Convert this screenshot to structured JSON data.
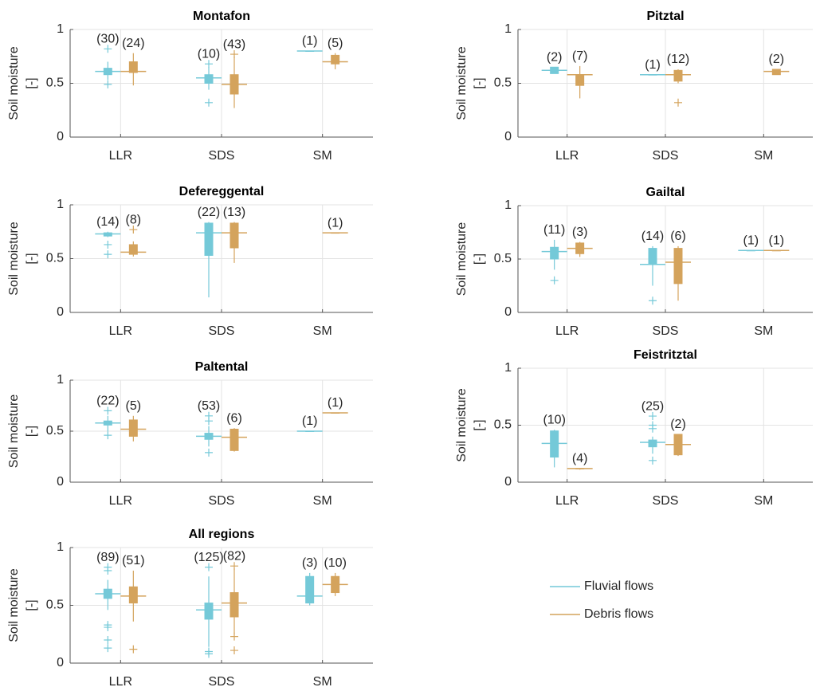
{
  "chart_data": [
    {
      "type": "box",
      "title": "Montafon",
      "ylabel": [
        "Soil moisture",
        "[-]"
      ],
      "categories": [
        "LLR",
        "SDS",
        "SM"
      ],
      "ylim": [
        0,
        1
      ],
      "yticks": [
        0,
        0.5,
        1
      ],
      "grid": true,
      "series": [
        {
          "name": "Fluvial flows",
          "color": "#74c9d8",
          "boxes": [
            {
              "min": 0.53,
              "q1": 0.58,
              "median": 0.61,
              "q3": 0.64,
              "max": 0.7,
              "outliers": [
                0.49,
                0.82
              ],
              "n": 30,
              "n_label": "(30)"
            },
            {
              "min": 0.44,
              "q1": 0.5,
              "median": 0.55,
              "q3": 0.58,
              "max": 0.65,
              "outliers": [
                0.32,
                0.68
              ],
              "n": 10,
              "n_label": "(10)"
            },
            {
              "min": 0.8,
              "q1": 0.8,
              "median": 0.8,
              "q3": 0.8,
              "max": 0.8,
              "outliers": [],
              "n": 1,
              "n_label": "(1)"
            }
          ]
        },
        {
          "name": "Debris flows",
          "color": "#d4a35c",
          "boxes": [
            {
              "min": 0.48,
              "q1": 0.6,
              "median": 0.61,
              "q3": 0.7,
              "max": 0.78,
              "outliers": [],
              "n": 24,
              "n_label": "(24)"
            },
            {
              "min": 0.27,
              "q1": 0.4,
              "median": 0.49,
              "q3": 0.58,
              "max": 0.75,
              "outliers": [
                0.77
              ],
              "n": 43,
              "n_label": "(43)"
            },
            {
              "min": 0.63,
              "q1": 0.68,
              "median": 0.7,
              "q3": 0.76,
              "max": 0.78,
              "outliers": [],
              "n": 5,
              "n_label": "(5)"
            }
          ]
        }
      ]
    },
    {
      "type": "box",
      "title": "Pitztal",
      "ylabel": [
        "Soil moisture",
        "[-]"
      ],
      "categories": [
        "LLR",
        "SDS",
        "SM"
      ],
      "ylim": [
        0,
        1
      ],
      "yticks": [
        0,
        0.5,
        1
      ],
      "grid": true,
      "series": [
        {
          "name": "Fluvial flows",
          "color": "#74c9d8",
          "boxes": [
            {
              "min": 0.59,
              "q1": 0.59,
              "median": 0.62,
              "q3": 0.65,
              "max": 0.65,
              "outliers": [],
              "n": 2,
              "n_label": "(2)"
            },
            {
              "min": 0.58,
              "q1": 0.58,
              "median": 0.58,
              "q3": 0.58,
              "max": 0.58,
              "outliers": [],
              "n": 1,
              "n_label": "(1)"
            },
            null
          ]
        },
        {
          "name": "Debris flows",
          "color": "#d4a35c",
          "boxes": [
            {
              "min": 0.36,
              "q1": 0.48,
              "median": 0.58,
              "q3": 0.58,
              "max": 0.66,
              "outliers": [],
              "n": 7,
              "n_label": "(7)"
            },
            {
              "min": 0.5,
              "q1": 0.52,
              "median": 0.58,
              "q3": 0.62,
              "max": 0.63,
              "outliers": [
                0.32
              ],
              "n": 12,
              "n_label": "(12)"
            },
            {
              "min": 0.58,
              "q1": 0.58,
              "median": 0.61,
              "q3": 0.63,
              "max": 0.63,
              "outliers": [],
              "n": 2,
              "n_label": "(2)"
            }
          ]
        }
      ]
    },
    {
      "type": "box",
      "title": "Defereggental",
      "ylabel": [
        "Soil moisture",
        "[-]"
      ],
      "categories": [
        "LLR",
        "SDS",
        "SM"
      ],
      "ylim": [
        0,
        1
      ],
      "yticks": [
        0,
        0.5,
        1
      ],
      "grid": true,
      "series": [
        {
          "name": "Fluvial flows",
          "color": "#74c9d8",
          "boxes": [
            {
              "min": 0.7,
              "q1": 0.71,
              "median": 0.73,
              "q3": 0.74,
              "max": 0.75,
              "outliers": [
                0.54,
                0.63
              ],
              "n": 14,
              "n_label": "(14)"
            },
            {
              "min": 0.14,
              "q1": 0.53,
              "median": 0.74,
              "q3": 0.83,
              "max": 0.84,
              "outliers": [],
              "n": 22,
              "n_label": "(22)"
            },
            null
          ]
        },
        {
          "name": "Debris flows",
          "color": "#d4a35c",
          "boxes": [
            {
              "min": 0.52,
              "q1": 0.54,
              "median": 0.56,
              "q3": 0.63,
              "max": 0.66,
              "outliers": [
                0.77
              ],
              "n": 8,
              "n_label": "(8)"
            },
            {
              "min": 0.46,
              "q1": 0.6,
              "median": 0.74,
              "q3": 0.83,
              "max": 0.84,
              "outliers": [],
              "n": 13,
              "n_label": "(13)"
            },
            {
              "min": 0.74,
              "q1": 0.74,
              "median": 0.74,
              "q3": 0.74,
              "max": 0.74,
              "outliers": [],
              "n": 1,
              "n_label": "(1)"
            }
          ]
        }
      ]
    },
    {
      "type": "box",
      "title": "Gailtal",
      "ylabel": [
        "Soil moisture",
        "[-]"
      ],
      "categories": [
        "LLR",
        "SDS",
        "SM"
      ],
      "ylim": [
        0,
        1
      ],
      "yticks": [
        0,
        0.5,
        1
      ],
      "grid": true,
      "series": [
        {
          "name": "Fluvial flows",
          "color": "#74c9d8",
          "boxes": [
            {
              "min": 0.4,
              "q1": 0.5,
              "median": 0.57,
              "q3": 0.61,
              "max": 0.68,
              "outliers": [
                0.3
              ],
              "n": 11,
              "n_label": "(11)"
            },
            {
              "min": 0.25,
              "q1": 0.45,
              "median": 0.45,
              "q3": 0.6,
              "max": 0.62,
              "outliers": [
                0.11
              ],
              "n": 14,
              "n_label": "(14)"
            },
            {
              "min": 0.58,
              "q1": 0.58,
              "median": 0.58,
              "q3": 0.58,
              "max": 0.58,
              "outliers": [],
              "n": 1,
              "n_label": "(1)"
            }
          ]
        },
        {
          "name": "Debris flows",
          "color": "#d4a35c",
          "boxes": [
            {
              "min": 0.52,
              "q1": 0.55,
              "median": 0.6,
              "q3": 0.65,
              "max": 0.66,
              "outliers": [],
              "n": 3,
              "n_label": "(3)"
            },
            {
              "min": 0.11,
              "q1": 0.27,
              "median": 0.47,
              "q3": 0.6,
              "max": 0.62,
              "outliers": [],
              "n": 6,
              "n_label": "(6)"
            },
            {
              "min": 0.58,
              "q1": 0.58,
              "median": 0.58,
              "q3": 0.58,
              "max": 0.58,
              "outliers": [],
              "n": 1,
              "n_label": "(1)"
            }
          ]
        }
      ]
    },
    {
      "type": "box",
      "title": "Paltental",
      "ylabel": [
        "Soil moisture",
        "[-]"
      ],
      "categories": [
        "LLR",
        "SDS",
        "SM"
      ],
      "ylim": [
        0,
        1
      ],
      "yticks": [
        0,
        0.5,
        1
      ],
      "grid": true,
      "series": [
        {
          "name": "Fluvial flows",
          "color": "#74c9d8",
          "boxes": [
            {
              "min": 0.5,
              "q1": 0.56,
              "median": 0.58,
              "q3": 0.6,
              "max": 0.65,
              "outliers": [
                0.46,
                0.7
              ],
              "n": 22,
              "n_label": "(22)"
            },
            {
              "min": 0.35,
              "q1": 0.42,
              "median": 0.45,
              "q3": 0.48,
              "max": 0.55,
              "outliers": [
                0.29,
                0.6,
                0.65
              ],
              "n": 53,
              "n_label": "(53)"
            },
            {
              "min": 0.5,
              "q1": 0.5,
              "median": 0.5,
              "q3": 0.5,
              "max": 0.5,
              "outliers": [],
              "n": 1,
              "n_label": "(1)"
            }
          ]
        },
        {
          "name": "Debris flows",
          "color": "#d4a35c",
          "boxes": [
            {
              "min": 0.4,
              "q1": 0.45,
              "median": 0.52,
              "q3": 0.61,
              "max": 0.65,
              "outliers": [],
              "n": 5,
              "n_label": "(5)"
            },
            {
              "min": 0.3,
              "q1": 0.31,
              "median": 0.44,
              "q3": 0.52,
              "max": 0.53,
              "outliers": [],
              "n": 6,
              "n_label": "(6)"
            },
            {
              "min": 0.68,
              "q1": 0.68,
              "median": 0.68,
              "q3": 0.68,
              "max": 0.68,
              "outliers": [],
              "n": 1,
              "n_label": "(1)"
            }
          ]
        }
      ]
    },
    {
      "type": "box",
      "title": "Feistritztal",
      "ylabel": [
        "Soil moisture",
        "[-]"
      ],
      "categories": [
        "LLR",
        "SDS",
        "SM"
      ],
      "ylim": [
        0,
        1
      ],
      "yticks": [
        0,
        0.5,
        1
      ],
      "grid": true,
      "series": [
        {
          "name": "Fluvial flows",
          "color": "#74c9d8",
          "boxes": [
            {
              "min": 0.13,
              "q1": 0.22,
              "median": 0.34,
              "q3": 0.45,
              "max": 0.46,
              "outliers": [],
              "n": 10,
              "n_label": "(10)"
            },
            {
              "min": 0.25,
              "q1": 0.31,
              "median": 0.35,
              "q3": 0.37,
              "max": 0.4,
              "outliers": [
                0.19,
                0.47,
                0.5,
                0.58
              ],
              "n": 25,
              "n_label": "(25)"
            },
            null
          ]
        },
        {
          "name": "Debris flows",
          "color": "#d4a35c",
          "boxes": [
            {
              "min": 0.11,
              "q1": 0.12,
              "median": 0.12,
              "q3": 0.12,
              "max": 0.12,
              "outliers": [],
              "n": 4,
              "n_label": "(4)"
            },
            {
              "min": 0.23,
              "q1": 0.24,
              "median": 0.33,
              "q3": 0.42,
              "max": 0.42,
              "outliers": [],
              "n": 2,
              "n_label": "(2)"
            },
            null
          ]
        }
      ]
    },
    {
      "type": "box",
      "title": "All regions",
      "ylabel": [
        "Soil moisture",
        "[-]"
      ],
      "categories": [
        "LLR",
        "SDS",
        "SM"
      ],
      "ylim": [
        0,
        1
      ],
      "yticks": [
        0,
        0.5,
        1
      ],
      "grid": true,
      "series": [
        {
          "name": "Fluvial flows",
          "color": "#74c9d8",
          "boxes": [
            {
              "min": 0.46,
              "q1": 0.56,
              "median": 0.6,
              "q3": 0.64,
              "max": 0.72,
              "outliers": [
                0.13,
                0.2,
                0.31,
                0.33,
                0.8,
                0.83
              ],
              "n": 89,
              "n_label": "(89)"
            },
            {
              "min": 0.14,
              "q1": 0.38,
              "median": 0.46,
              "q3": 0.52,
              "max": 0.75,
              "outliers": [
                0.08,
                0.1,
                0.83
              ],
              "n": 125,
              "n_label": "(125)"
            },
            {
              "min": 0.5,
              "q1": 0.52,
              "median": 0.58,
              "q3": 0.75,
              "max": 0.78,
              "outliers": [],
              "n": 3,
              "n_label": "(3)"
            }
          ]
        },
        {
          "name": "Debris flows",
          "color": "#d4a35c",
          "boxes": [
            {
              "min": 0.36,
              "q1": 0.52,
              "median": 0.58,
              "q3": 0.66,
              "max": 0.8,
              "outliers": [
                0.12
              ],
              "n": 51,
              "n_label": "(51)"
            },
            {
              "min": 0.25,
              "q1": 0.4,
              "median": 0.52,
              "q3": 0.61,
              "max": 0.82,
              "outliers": [
                0.11,
                0.23,
                0.84
              ],
              "n": 82,
              "n_label": "(82)"
            },
            {
              "min": 0.58,
              "q1": 0.61,
              "median": 0.68,
              "q3": 0.75,
              "max": 0.78,
              "outliers": [],
              "n": 10,
              "n_label": "(10)"
            }
          ]
        }
      ]
    }
  ]
}
